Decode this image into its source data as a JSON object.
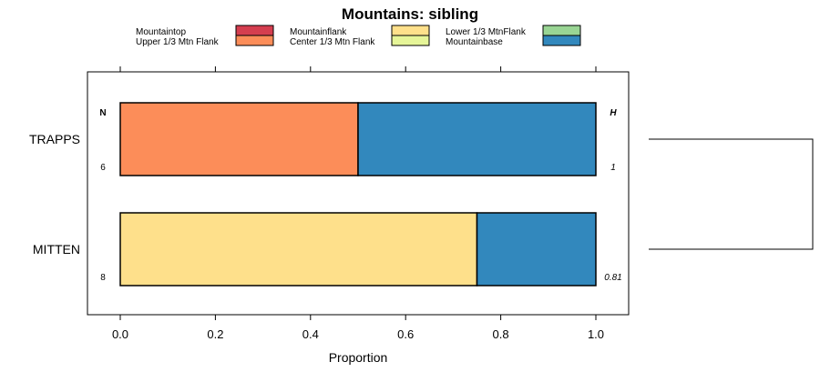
{
  "chart_data": {
    "type": "bar",
    "orientation": "horizontal",
    "stacked": true,
    "title": "Mountains: sibling",
    "xlabel": "Proportion",
    "xlim": [
      0,
      1
    ],
    "x_ticks": [
      "0.0",
      "0.2",
      "0.4",
      "0.6",
      "0.8",
      "1.0"
    ],
    "categories": [
      "TRAPPS",
      "MITTEN"
    ],
    "legend": [
      {
        "name": "Mountaintop",
        "color": "#d53e4f"
      },
      {
        "name": "Upper 1/3 Mtn Flank",
        "color": "#fc8d59"
      },
      {
        "name": "Mountainflank",
        "color": "#fee08b"
      },
      {
        "name": "Center 1/3 Mtn Flank",
        "color": "#e6f598"
      },
      {
        "name": "Lower 1/3 MtnFlank",
        "color": "#99d594"
      },
      {
        "name": "Mountainbase",
        "color": "#3288bd"
      }
    ],
    "series": [
      {
        "name": "Mountaintop",
        "values": [
          0,
          0
        ]
      },
      {
        "name": "Upper 1/3 Mtn Flank",
        "values": [
          0.5,
          0
        ]
      },
      {
        "name": "Mountainflank",
        "values": [
          0,
          0.75
        ]
      },
      {
        "name": "Center 1/3 Mtn Flank",
        "values": [
          0,
          0
        ]
      },
      {
        "name": "Lower 1/3 MtnFlank",
        "values": [
          0,
          0
        ]
      },
      {
        "name": "Mountainbase",
        "values": [
          0.5,
          0.25
        ]
      }
    ],
    "n_header": "N",
    "h_header": "H",
    "n_values": [
      "6",
      "8"
    ],
    "h_values": [
      "1",
      "0.81"
    ],
    "dendrogram": true
  }
}
